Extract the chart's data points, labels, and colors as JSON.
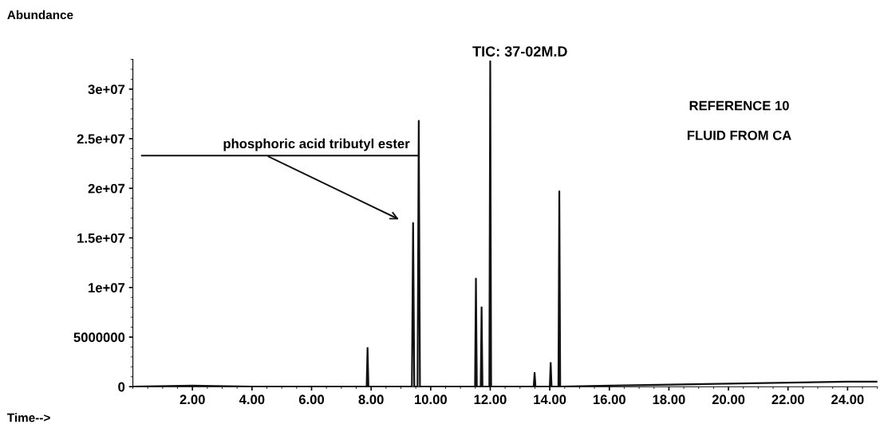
{
  "chart_data": {
    "type": "line",
    "title": "TIC: 37-02M.D",
    "ylabel": "Abundance",
    "xlabel": "Time-->",
    "annotations": [
      {
        "text": "phosphoric acid tributyl ester",
        "x": 9.6,
        "y": 23300000
      },
      "REFERENCE 10",
      "FLUID FROM CA"
    ],
    "series": [
      {
        "color": "#111111",
        "x": [
          0,
          2,
          4,
          6,
          7.85,
          7.88,
          7.91,
          9.37,
          9.41,
          9.45,
          9.56,
          9.6,
          9.64,
          11.49,
          11.52,
          11.55,
          11.68,
          11.71,
          11.74,
          11.97,
          12.0,
          12.03,
          13.46,
          13.49,
          13.52,
          14.0,
          14.03,
          14.06,
          14.29,
          14.32,
          14.35,
          16,
          18,
          20,
          22,
          24,
          25
        ],
        "values": [
          0,
          100000,
          0,
          0,
          0,
          3900000,
          0,
          0,
          16500000,
          0,
          0,
          26800000,
          0,
          0,
          10900000,
          0,
          0,
          8000000,
          0,
          0,
          32800000,
          0,
          0,
          1400000,
          0,
          0,
          2400000,
          0,
          0,
          19700000,
          0,
          100000,
          200000,
          300000,
          400000,
          500000,
          500000
        ]
      }
    ],
    "xlim": [
      0,
      25
    ],
    "ylim": [
      0,
      33000000
    ],
    "xticks": [
      {
        "value": 2,
        "label": "2.00"
      },
      {
        "value": 4,
        "label": "4.00"
      },
      {
        "value": 6,
        "label": "6.00"
      },
      {
        "value": 8,
        "label": "8.00"
      },
      {
        "value": 10,
        "label": "10.00"
      },
      {
        "value": 12,
        "label": "12.00"
      },
      {
        "value": 14,
        "label": "14.00"
      },
      {
        "value": 16,
        "label": "16.00"
      },
      {
        "value": 18,
        "label": "18.00"
      },
      {
        "value": 20,
        "label": "20.00"
      },
      {
        "value": 22,
        "label": "22.00"
      },
      {
        "value": 24,
        "label": "24.00"
      }
    ],
    "yticks": [
      0,
      5000000,
      {
        "value": 10000000,
        "label": "1e+07"
      },
      {
        "value": 15000000,
        "label": "1.5e+07"
      },
      {
        "value": 20000000,
        "label": "2e+07"
      },
      {
        "value": 25000000,
        "label": "2.5e+07"
      },
      {
        "value": 30000000,
        "label": "3e+07"
      }
    ],
    "grid": false,
    "legend": false,
    "marker": "none",
    "line_style": "solid"
  }
}
